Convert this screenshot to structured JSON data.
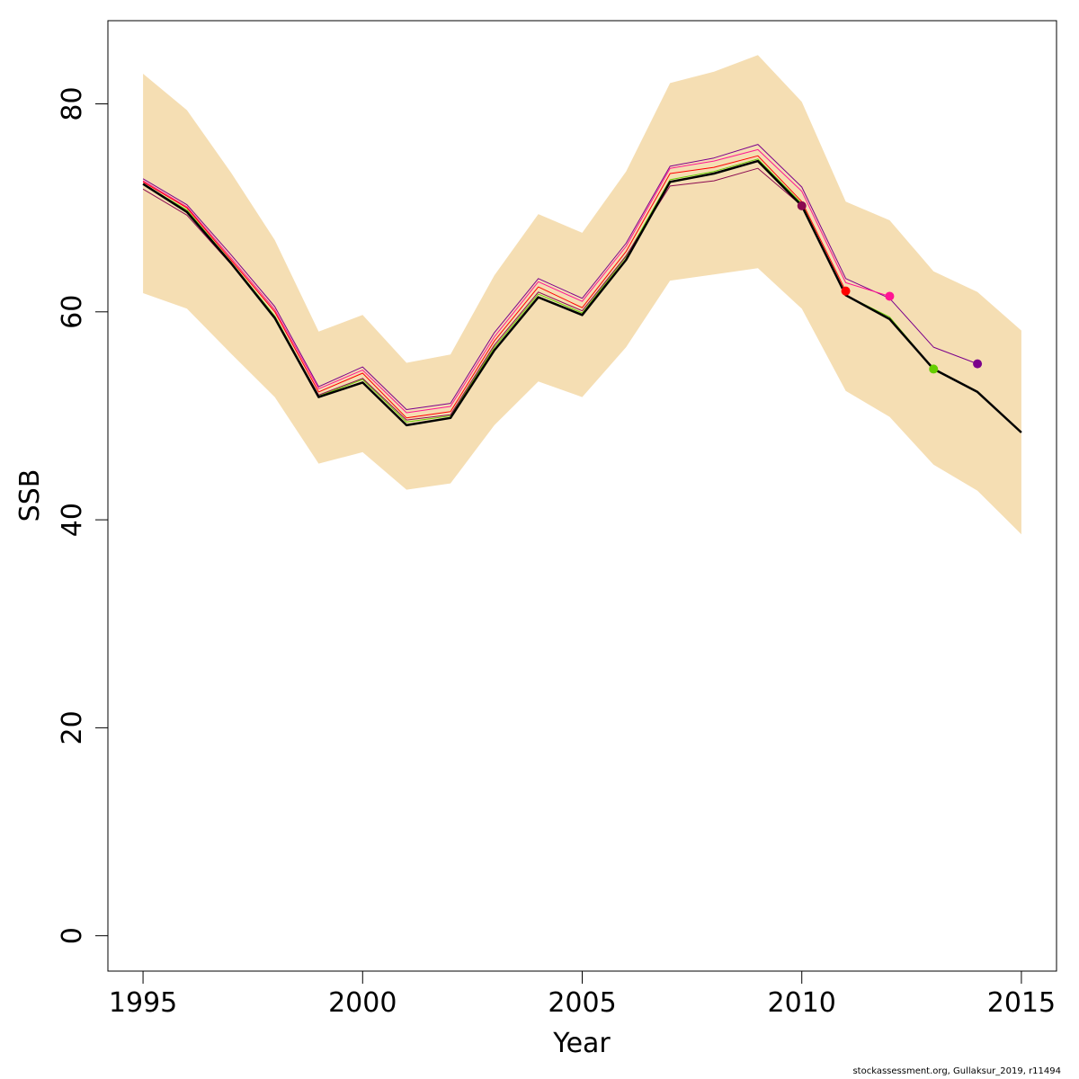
{
  "chart_data": {
    "type": "line",
    "title": "",
    "xlabel": "Year",
    "ylabel": "SSB",
    "xlim": [
      1994.2,
      2015.8
    ],
    "ylim": [
      -3.4,
      88.0
    ],
    "x_ticks": [
      1995,
      2000,
      2005,
      2010,
      2015
    ],
    "y_ticks": [
      0,
      20,
      40,
      60,
      80
    ],
    "grid": false,
    "band": {
      "color": "#F5DEB3",
      "x": [
        1995,
        1996,
        1997,
        1998,
        1999,
        2000,
        2001,
        2002,
        2003,
        2004,
        2005,
        2006,
        2007,
        2008,
        2009,
        2010,
        2011,
        2012,
        2013,
        2014,
        2015
      ],
      "lower": [
        61.8,
        60.3,
        56.0,
        51.8,
        45.4,
        46.5,
        42.9,
        43.5,
        49.1,
        53.3,
        51.8,
        56.6,
        63.0,
        63.6,
        64.2,
        60.3,
        52.4,
        49.9,
        45.3,
        42.8,
        38.6
      ],
      "upper": [
        82.9,
        79.4,
        73.4,
        66.9,
        58.1,
        59.7,
        55.1,
        55.9,
        63.5,
        69.4,
        67.6,
        73.5,
        82.0,
        83.1,
        84.7,
        80.2,
        70.6,
        68.8,
        63.9,
        61.9,
        58.2
      ]
    },
    "series": [
      {
        "color": "#7B008B",
        "width": 1,
        "x": [
          1995,
          1996,
          1997,
          1998,
          1999,
          2000,
          2001,
          2002,
          2003,
          2004,
          2005,
          2006,
          2007,
          2008,
          2009,
          2010,
          2011,
          2012,
          2013,
          2014
        ],
        "values": [
          72.8,
          70.3,
          65.5,
          60.5,
          52.8,
          54.7,
          50.6,
          51.2,
          58.0,
          63.2,
          61.3,
          66.6,
          74.0,
          74.8,
          76.1,
          72.0,
          63.2,
          61.3,
          56.6,
          55.0
        ],
        "point_at": 2014
      },
      {
        "color": "#FF1493",
        "width": 1,
        "x": [
          1995,
          1996,
          1997,
          1998,
          1999,
          2000,
          2001,
          2002,
          2003,
          2004,
          2005,
          2006,
          2007,
          2008,
          2009,
          2010,
          2011,
          2012
        ],
        "values": [
          72.6,
          70.1,
          65.2,
          60.2,
          52.6,
          54.4,
          50.3,
          50.9,
          57.6,
          62.9,
          61.0,
          66.3,
          73.8,
          74.5,
          75.6,
          71.6,
          62.8,
          61.5
        ],
        "point_at": 2012
      },
      {
        "color": "#66CD00",
        "width": 1,
        "x": [
          1995,
          1996,
          1997,
          1998,
          1999,
          2000,
          2001,
          2002,
          2003,
          2004,
          2005,
          2006,
          2007,
          2008,
          2009,
          2010,
          2011,
          2012,
          2013
        ],
        "values": [
          72.3,
          69.8,
          64.8,
          59.6,
          51.9,
          53.5,
          49.4,
          50.0,
          56.6,
          61.7,
          59.9,
          65.3,
          72.7,
          73.5,
          74.7,
          70.4,
          61.6,
          59.5,
          54.5
        ],
        "point_at": 2013
      },
      {
        "color": "#FF0000",
        "width": 1,
        "x": [
          1995,
          1996,
          1997,
          1998,
          1999,
          2000,
          2001,
          2002,
          2003,
          2004,
          2005,
          2006,
          2007,
          2008,
          2009,
          2010,
          2011
        ],
        "values": [
          72.5,
          70.0,
          65.0,
          60.0,
          52.3,
          54.1,
          49.8,
          50.4,
          57.2,
          62.4,
          60.4,
          65.8,
          73.3,
          73.9,
          75.0,
          70.6,
          62.0
        ],
        "point_at": 2011
      },
      {
        "color": "#8B0A50",
        "width": 1,
        "x": [
          1995,
          1996,
          1997,
          1998,
          1999,
          2000,
          2001,
          2002,
          2003,
          2004,
          2005,
          2006,
          2007,
          2008,
          2009,
          2010
        ],
        "values": [
          71.8,
          69.3,
          64.6,
          59.4,
          52.0,
          53.6,
          49.6,
          50.1,
          56.8,
          61.9,
          60.1,
          65.4,
          72.1,
          72.6,
          73.8,
          70.2
        ],
        "point_at": 2010
      },
      {
        "color": "#000000",
        "width": 2.5,
        "x": [
          1995,
          1996,
          1997,
          1998,
          1999,
          2000,
          2001,
          2002,
          2003,
          2004,
          2005,
          2006,
          2007,
          2008,
          2009,
          2010,
          2011,
          2012,
          2013,
          2014,
          2015
        ],
        "values": [
          72.3,
          69.6,
          64.7,
          59.4,
          51.8,
          53.2,
          49.1,
          49.8,
          56.3,
          61.4,
          59.7,
          65.0,
          72.5,
          73.3,
          74.5,
          70.2,
          61.6,
          59.3,
          54.5,
          52.3,
          48.4
        ]
      }
    ]
  },
  "credit": "stockassessment.org, Gullaksur_2019, r11494"
}
